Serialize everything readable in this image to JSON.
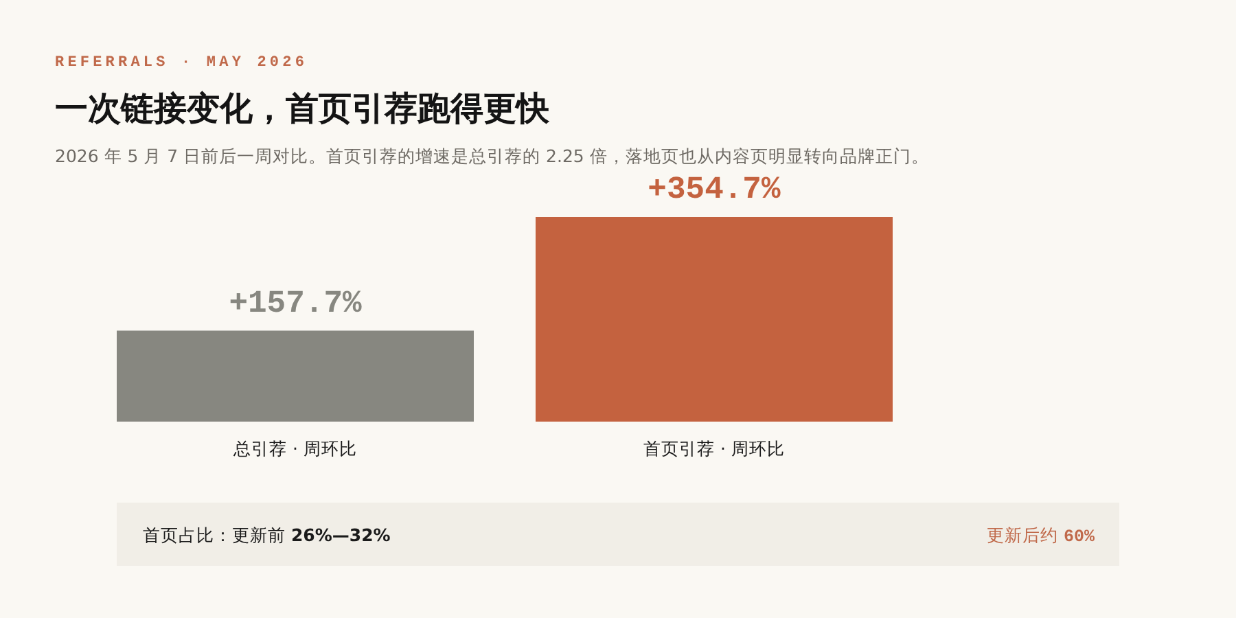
{
  "chart_data": {
    "type": "bar",
    "title": "一次链接变化，首页引荐跑得更快",
    "subtitle": "2026 年 5 月 7 日前后一周对比。首页引荐的增速是总引荐的 2.25 倍，落地页也从内容页明显转向品牌正门。",
    "categories": [
      "总引荐 · 周环比",
      "首页引荐 · 周环比"
    ],
    "values": [
      157.7,
      354.7
    ],
    "colors": [
      "#878780",
      "#c4623f"
    ],
    "value_labels": [
      "+157.7%",
      "+354.7%"
    ],
    "annotations": [
      "REFERRALS · MAY 2026",
      "首页占比：更新前 26%—32%",
      "更新后约 60%"
    ]
  }
}
